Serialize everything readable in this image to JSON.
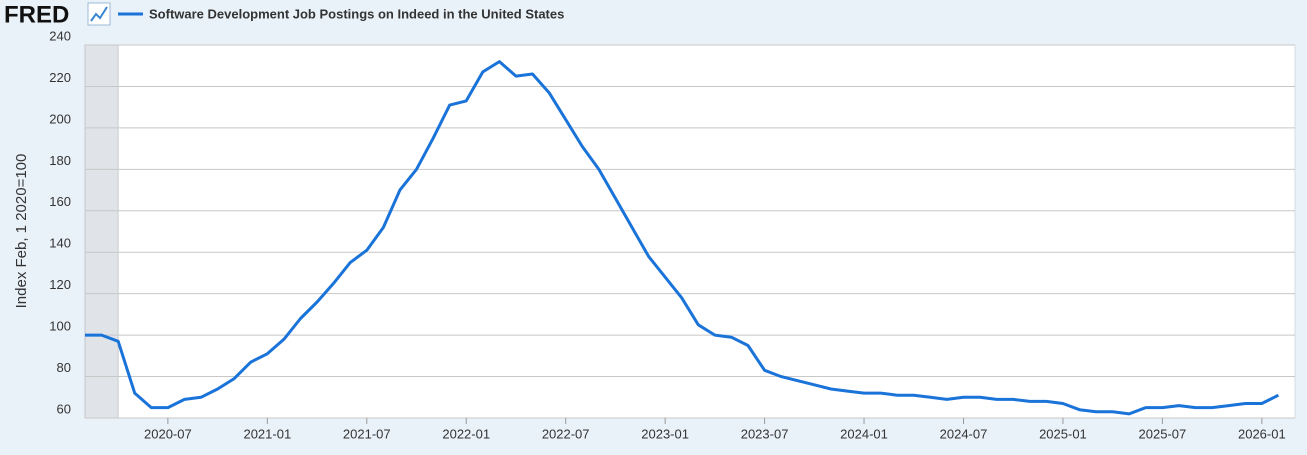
{
  "brand": "FRED",
  "chart_data": {
    "type": "line",
    "y_label": "Index Feb, 1 2020=100",
    "x": [
      "2020-02",
      "2020-03",
      "2020-04",
      "2020-05",
      "2020-06",
      "2020-07",
      "2020-08",
      "2020-09",
      "2020-10",
      "2020-11",
      "2020-12",
      "2021-01",
      "2021-02",
      "2021-03",
      "2021-04",
      "2021-05",
      "2021-06",
      "2021-07",
      "2021-08",
      "2021-09",
      "2021-10",
      "2021-11",
      "2021-12",
      "2022-01",
      "2022-02",
      "2022-03",
      "2022-04",
      "2022-05",
      "2022-06",
      "2022-07",
      "2022-08",
      "2022-09",
      "2022-10",
      "2022-11",
      "2022-12",
      "2023-01",
      "2023-02",
      "2023-03",
      "2023-04",
      "2023-05",
      "2023-06",
      "2023-07",
      "2023-08",
      "2023-09",
      "2023-10",
      "2023-11",
      "2023-12",
      "2024-01",
      "2024-02",
      "2024-03",
      "2024-04",
      "2024-05",
      "2024-06",
      "2024-07",
      "2024-08",
      "2024-09",
      "2024-10",
      "2024-11",
      "2024-12",
      "2025-01",
      "2025-02",
      "2025-03",
      "2025-04",
      "2025-05",
      "2025-06",
      "2025-07",
      "2025-08",
      "2025-09",
      "2025-10",
      "2025-11",
      "2025-12",
      "2026-01",
      "2026-02"
    ],
    "series": [
      {
        "name": "Software Development Job Postings on Indeed in the United States",
        "color": "#1a73d9",
        "values": [
          100,
          100,
          97,
          72,
          65,
          65,
          69,
          70,
          74,
          79,
          87,
          91,
          98,
          108,
          116,
          125,
          135,
          141,
          152,
          170,
          180,
          195,
          211,
          213,
          227,
          232,
          225,
          226,
          217,
          204,
          191,
          180,
          166,
          152,
          138,
          128,
          118,
          105,
          100,
          99,
          95,
          83,
          80,
          78,
          76,
          74,
          73,
          72,
          72,
          71,
          71,
          70,
          69,
          70,
          70,
          69,
          69,
          68,
          68,
          67,
          64,
          63,
          63,
          62,
          65,
          65,
          66,
          65,
          65,
          66,
          67,
          67,
          71
        ]
      }
    ],
    "xlim": [
      "2020-02",
      "2026-03"
    ],
    "xticks": [
      "2020-07",
      "2021-01",
      "2021-07",
      "2022-01",
      "2022-07",
      "2023-01",
      "2023-07",
      "2024-01",
      "2024-07",
      "2025-01",
      "2025-07",
      "2026-01"
    ],
    "ylim": [
      60,
      240
    ],
    "yticks": [
      60,
      80,
      100,
      120,
      140,
      160,
      180,
      200,
      220,
      240
    ],
    "grid": true,
    "recession": {
      "start": "2020-02",
      "end": "2020-04"
    }
  }
}
